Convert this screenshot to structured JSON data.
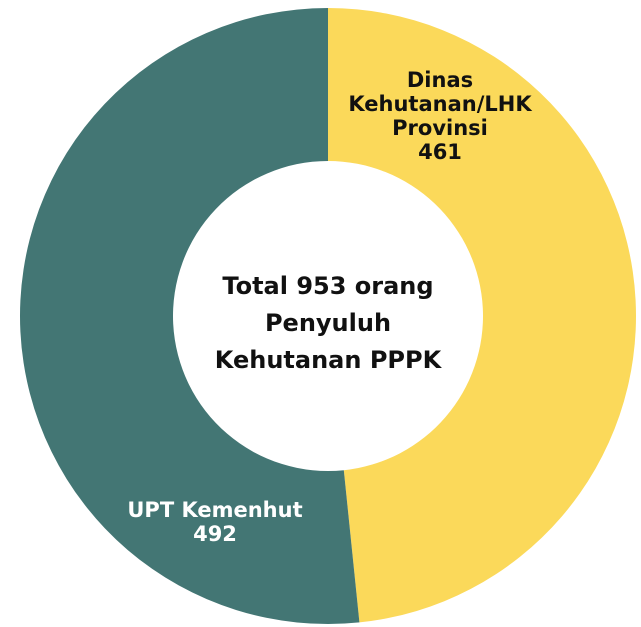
{
  "chart_data": {
    "type": "donut",
    "center_label": [
      "Total 953 orang",
      "Penyuluh",
      "Kehutanan PPPK"
    ],
    "categories": [
      "Dinas Kehutanan/LHK Provinsi",
      "UPT Kemenhut"
    ],
    "values": [
      461,
      492
    ],
    "colors": [
      "#fbd95a",
      "#437674"
    ]
  }
}
